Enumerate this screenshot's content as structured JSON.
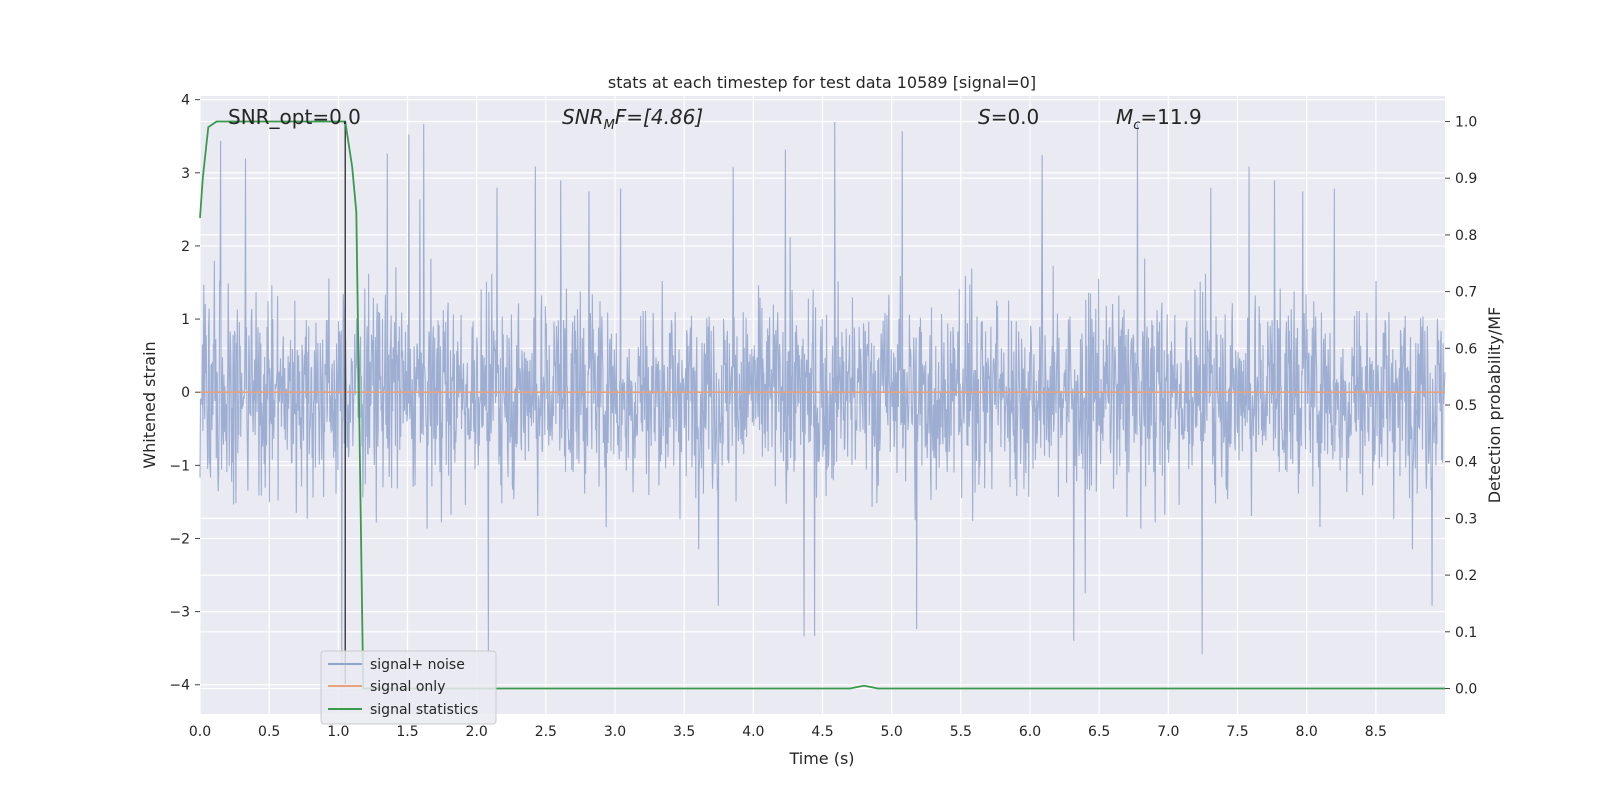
{
  "chart_data": {
    "type": "line",
    "title": "stats at each timestep for test data 10589 [signal=0]",
    "xlabel": "Time (s)",
    "ylabel": "Whitened strain",
    "y2label": "Detection probability/MF",
    "xlim": [
      0,
      9.0
    ],
    "ylim": [
      -4.4,
      4.05
    ],
    "y2lim": [
      -0.045,
      1.045
    ],
    "xticks": [
      0.0,
      0.5,
      1.0,
      1.5,
      2.0,
      2.5,
      3.0,
      3.5,
      4.0,
      4.5,
      5.0,
      5.5,
      6.0,
      6.5,
      7.0,
      7.5,
      8.0,
      8.5
    ],
    "xtick_labels": [
      "0.0",
      "0.5",
      "1.0",
      "1.5",
      "2.0",
      "2.5",
      "3.0",
      "3.5",
      "4.0",
      "4.5",
      "5.0",
      "5.5",
      "6.0",
      "6.5",
      "7.0",
      "7.5",
      "8.0",
      "8.5"
    ],
    "yticks": [
      4,
      3,
      2,
      1,
      0,
      -1,
      -2,
      -3,
      -4
    ],
    "ytick_labels": [
      "4",
      "3",
      "2",
      "1",
      "0",
      "−1",
      "−2",
      "−3",
      "−4"
    ],
    "y2ticks": [
      1.0,
      0.9,
      0.8,
      0.7,
      0.6,
      0.5,
      0.4,
      0.3,
      0.2,
      0.1,
      0.0
    ],
    "y2tick_labels": [
      "1.0",
      "0.9",
      "0.8",
      "0.7",
      "0.6",
      "0.5",
      "0.4",
      "0.3",
      "0.2",
      "0.1",
      "0.0"
    ],
    "grid": true,
    "legend_position": "lower-left",
    "annotations": {
      "snr_opt": "SNR_opt=0.0",
      "snr_mf_main": "SNR",
      "snr_mf_sub": "M",
      "snr_mf_rest": "F=[4.86]",
      "s_main": "S",
      "s_rest": "=0.0",
      "mc_main": "M",
      "mc_sub": "c",
      "mc_rest": "=11.9"
    },
    "series": [
      {
        "name": "signal+ noise",
        "color": "#8fa3cc",
        "axis": "left",
        "kind": "noise",
        "x_range": [
          0,
          9.0
        ],
        "typical_envelope": [
          -1.7,
          1.6
        ],
        "peak_range": [
          -4.0,
          3.8
        ]
      },
      {
        "name": "signal only",
        "color": "#e8a27e",
        "axis": "left",
        "x": [
          0,
          9.0
        ],
        "y": [
          0,
          0
        ]
      },
      {
        "name": "signal statistics",
        "color": "#3a9a4c",
        "axis": "right",
        "x": [
          0.0,
          0.02,
          0.06,
          0.12,
          0.3,
          0.6,
          0.9,
          1.0,
          1.05,
          1.1,
          1.13,
          1.18,
          1.25,
          1.5,
          2.0,
          3.0,
          4.0,
          4.7,
          4.8,
          4.9,
          5.0,
          6.0,
          7.0,
          8.0,
          9.0
        ],
        "y": [
          0.83,
          0.9,
          0.99,
          1.0,
          1.0,
          1.0,
          1.0,
          1.0,
          1.0,
          0.92,
          0.84,
          0.0,
          0.0,
          0.0,
          0.0,
          0.0,
          0.0,
          0.0,
          0.005,
          0.0,
          0.0,
          0.0,
          0.0,
          0.0,
          0.0
        ]
      }
    ],
    "vertical_marker": {
      "x": 1.05,
      "color": "#444444"
    }
  }
}
